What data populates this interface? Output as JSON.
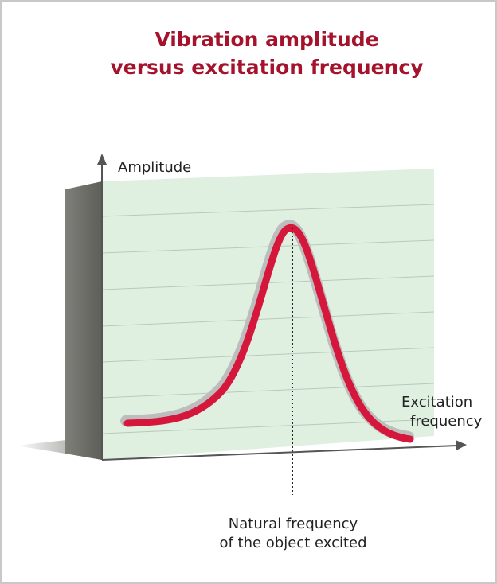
{
  "title": [
    "Vibration amplitude",
    "versus excitation frequency"
  ],
  "y_axis_label": "Amplitude",
  "x_axis_label": [
    "Excitation",
    "frequency"
  ],
  "annotation": [
    "Natural frequency",
    "of the object excited"
  ]
}
